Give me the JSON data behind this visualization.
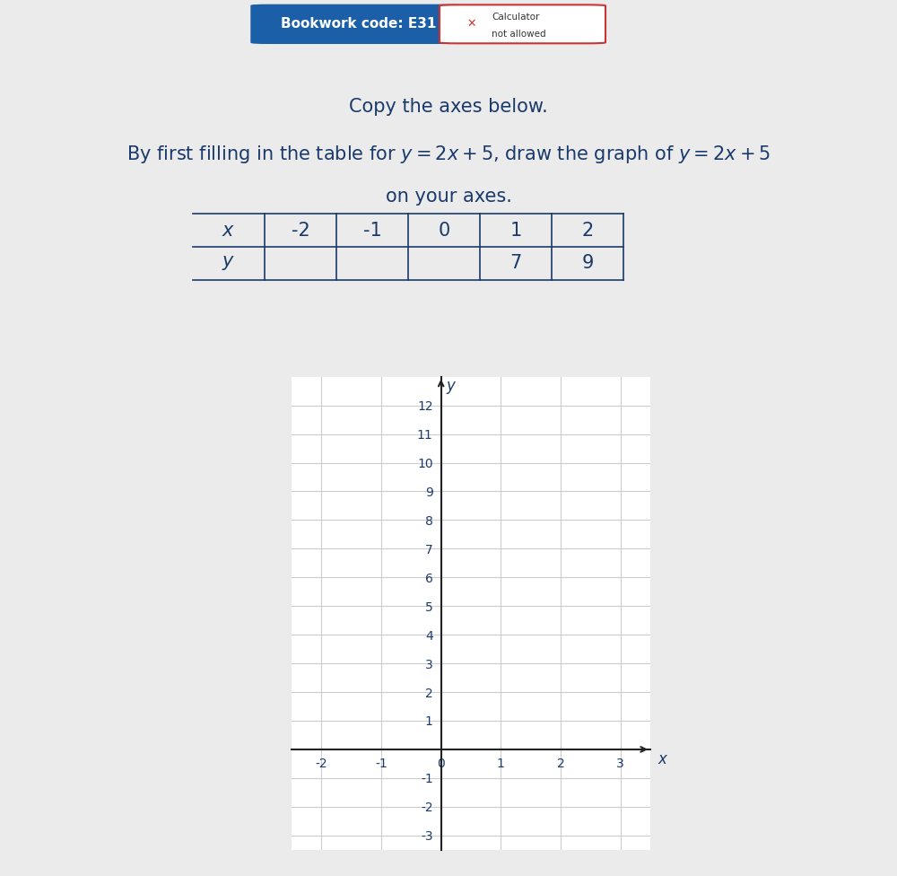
{
  "bg_color": "#ebebeb",
  "page_bg": "#ffffff",
  "bookwork_text": "Bookwork code: E31",
  "bookwork_box_color": "#1a5fa8",
  "title1": "Copy the axes below.",
  "title2": "By first filling in the table for $y = 2x + 5$, draw the graph of $y = 2x + 5$",
  "title3": "on your axes.",
  "table_x_vals": [
    "-2",
    "-1",
    "0",
    "1",
    "2"
  ],
  "table_y_vals": [
    "",
    "",
    "",
    "7",
    "9"
  ],
  "xlim": [
    -2.5,
    3.5
  ],
  "ylim": [
    -3.5,
    13.0
  ],
  "xticks": [
    -2,
    -1,
    0,
    1,
    2,
    3
  ],
  "yticks": [
    -3,
    -2,
    -1,
    0,
    1,
    2,
    3,
    4,
    5,
    6,
    7,
    8,
    9,
    10,
    11,
    12
  ],
  "grid_color": "#cccccc",
  "axis_color": "#222222",
  "text_color": "#1a3a6b",
  "font_size_title": 15,
  "font_size_table": 15,
  "font_size_axis": 10
}
